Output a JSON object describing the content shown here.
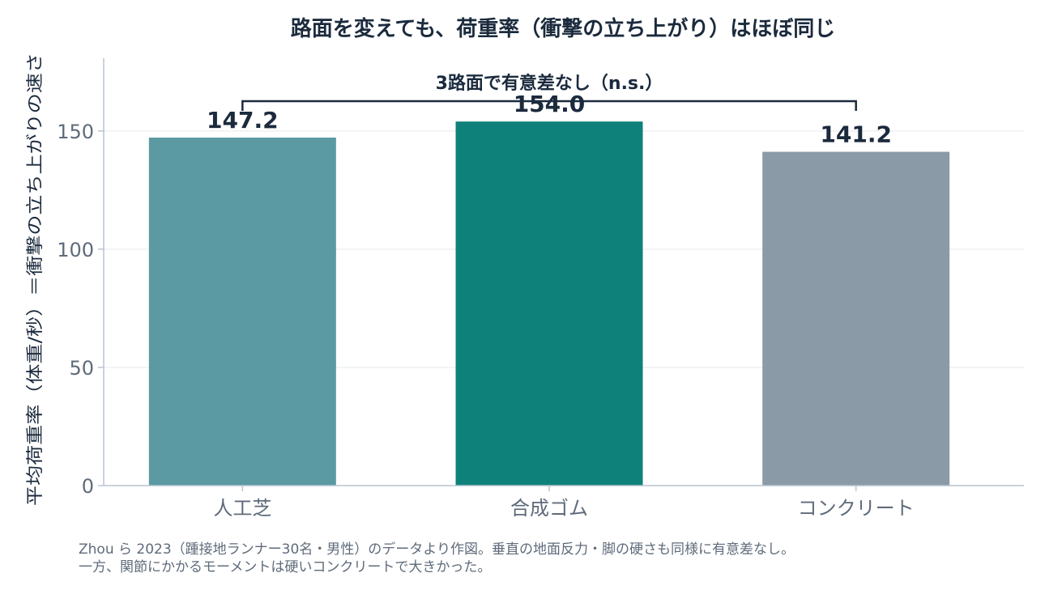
{
  "chart_data": {
    "type": "bar",
    "title": "路面を変えても、荷重率（衝撃の立ち上がり）はほぼ同じ",
    "ylabel": "平均荷重率（体重/秒）＝衝撃の立ち上がりの速さ",
    "xlabel": "",
    "categories": [
      "人工芝",
      "合成ゴム",
      "コンクリート"
    ],
    "values": [
      147.2,
      154.0,
      141.2
    ],
    "value_labels": [
      "147.2",
      "154.0",
      "141.2"
    ],
    "colors": [
      "#5b9aa2",
      "#0e817a",
      "#8b9aa7"
    ],
    "ylim": [
      0,
      190
    ],
    "yticks": [
      0,
      50,
      100,
      150
    ],
    "ytick_labels": [
      "0",
      "50",
      "100",
      "150"
    ],
    "grid": true,
    "annotation": {
      "text": "3路面で有意差なし（n.s.）",
      "from_category": 0,
      "to_category": 2
    }
  },
  "note": {
    "line1": "Zhou ら 2023（踵接地ランナー30名・男性）のデータより作図。垂直の地面反力・脚の硬さも同様に有意差なし。",
    "line2": "一方、関節にかかるモーメントは硬いコンクリートで大きかった。"
  },
  "colors": {
    "text_dark": "#1b2a3d",
    "text_muted": "#5f6b7a",
    "grid": "#e6e9ec",
    "axis": "#b8c4d0"
  }
}
